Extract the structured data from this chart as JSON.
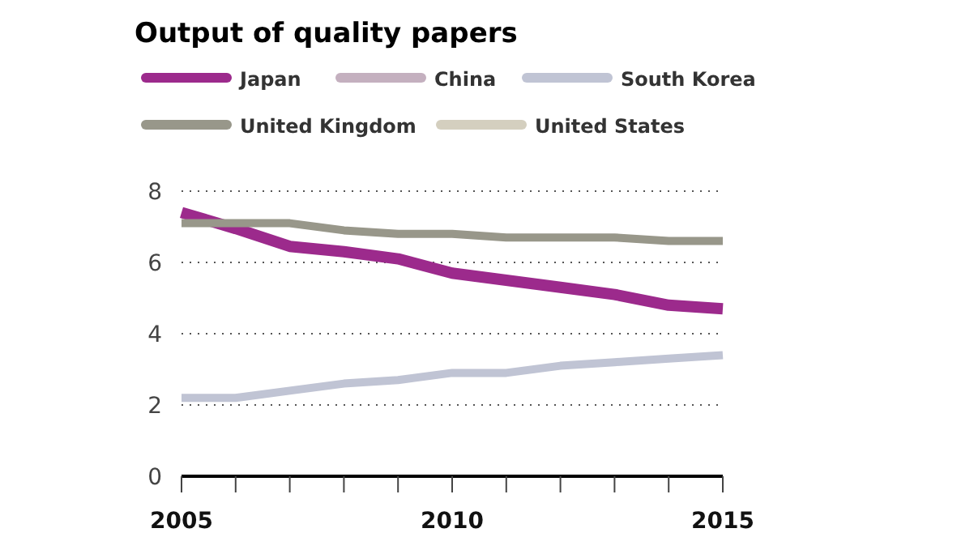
{
  "chart_data": {
    "type": "line",
    "title": "Output of quality papers",
    "x": [
      2005,
      2006,
      2007,
      2008,
      2009,
      2010,
      2011,
      2012,
      2013,
      2014,
      2015
    ],
    "series": [
      {
        "name": "Japan",
        "color": "#9c2a8c",
        "values": [
          7.4,
          6.95,
          6.45,
          6.3,
          6.1,
          5.7,
          5.5,
          5.3,
          5.1,
          4.8,
          4.7
        ]
      },
      {
        "name": "China",
        "color": "#c4b0bf",
        "values": [
          null,
          null,
          null,
          null,
          null,
          null,
          null,
          null,
          null,
          null,
          null
        ]
      },
      {
        "name": "South Korea",
        "color": "#c0c4d4",
        "values": [
          2.2,
          2.2,
          2.4,
          2.6,
          2.7,
          2.9,
          2.9,
          3.1,
          3.2,
          3.3,
          3.4
        ]
      },
      {
        "name": "United Kingdom",
        "color": "#98978a",
        "values": [
          7.1,
          7.1,
          7.1,
          6.9,
          6.8,
          6.8,
          6.7,
          6.7,
          6.7,
          6.6,
          6.6
        ]
      },
      {
        "name": "United States",
        "color": "#d4cfbf",
        "values": [
          null,
          null,
          null,
          null,
          null,
          null,
          null,
          null,
          null,
          null,
          null
        ]
      }
    ],
    "xlim": [
      2005,
      2015
    ],
    "xticks": [
      2005,
      {
        "value": 2006,
        "label": null
      },
      {
        "value": 2007,
        "label": null
      },
      {
        "value": 2008,
        "label": null
      },
      {
        "value": 2009,
        "label": null
      },
      2010,
      {
        "value": 2011,
        "label": null
      },
      {
        "value": 2012,
        "label": null
      },
      {
        "value": 2013,
        "label": null
      },
      {
        "value": 2014,
        "label": null
      },
      2015
    ],
    "ylim": [
      0,
      8
    ],
    "yticks": [
      0,
      2,
      4,
      6,
      8
    ],
    "grid": "y",
    "legend": "top left",
    "line_style": "solid"
  }
}
